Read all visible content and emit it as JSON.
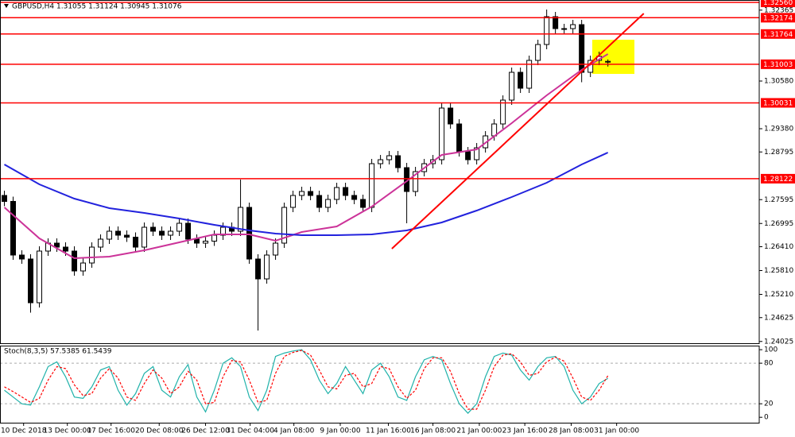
{
  "chart_data": [
    {
      "type": "candlestick",
      "title": "GBPUSD,H4  1.31055 1.31124 1.30945 1.31076",
      "xlim": [
        -0.5,
        86.3
      ],
      "ylim": [
        1.2398,
        1.3262
      ],
      "yticks": [
        1.32365,
        {
          "value": 1.3058,
          "label": "1.30580"
        },
        {
          "value": 1.2938,
          "label": "1.29380"
        },
        1.28795,
        1.27595,
        1.26995,
        {
          "value": 1.2641,
          "label": "1.26410"
        },
        {
          "value": 1.2581,
          "label": "1.25810"
        },
        {
          "value": 1.2521,
          "label": "1.25210"
        },
        1.24625,
        1.24025
      ],
      "open": [
        1.277,
        1.2755,
        1.262,
        1.261,
        1.25,
        1.263,
        1.265,
        1.264,
        1.263,
        1.258,
        1.26,
        1.264,
        1.266,
        1.268,
        1.267,
        1.2665,
        1.264,
        1.269,
        1.268,
        1.267,
        1.268,
        1.27,
        1.266,
        1.265,
        1.2655,
        1.267,
        1.269,
        1.268,
        1.274,
        1.261,
        1.256,
        1.262,
        1.265,
        1.274,
        1.277,
        1.278,
        1.277,
        1.274,
        1.276,
        1.279,
        1.277,
        1.276,
        1.274,
        1.285,
        1.286,
        1.287,
        1.284,
        1.278,
        1.283,
        1.285,
        1.286,
        1.299,
        1.295,
        1.288,
        1.286,
        1.289,
        1.292,
        1.295,
        1.301,
        1.308,
        1.304,
        1.311,
        1.315,
        1.322,
        1.319,
        1.319,
        1.32,
        1.308,
        1.311,
        1.31055
      ],
      "high": [
        1.2782,
        1.2767,
        1.2632,
        1.2622,
        1.2642,
        1.2662,
        1.2662,
        1.2652,
        1.2642,
        1.2612,
        1.2652,
        1.2672,
        1.2692,
        1.2692,
        1.2682,
        1.2677,
        1.2702,
        1.2702,
        1.2692,
        1.2692,
        1.2712,
        1.2712,
        1.2672,
        1.2667,
        1.2682,
        1.2702,
        1.2702,
        1.281,
        1.2752,
        1.2622,
        1.2632,
        1.2662,
        1.2752,
        1.2782,
        1.2792,
        1.2792,
        1.2782,
        1.2772,
        1.2802,
        1.2802,
        1.2782,
        1.2772,
        1.2862,
        1.2872,
        1.2882,
        1.2882,
        1.2852,
        1.2842,
        1.2862,
        1.2872,
        1.3002,
        1.3002,
        1.2962,
        1.2892,
        1.2902,
        1.2932,
        1.2962,
        1.3022,
        1.3092,
        1.3092,
        1.3122,
        1.3162,
        1.3238,
        1.3232,
        1.3202,
        1.3212,
        1.3212,
        1.3122,
        1.3132,
        1.31124
      ],
      "low": [
        1.2743,
        1.2608,
        1.2598,
        1.2475,
        1.2488,
        1.2618,
        1.2628,
        1.2618,
        1.2568,
        1.2568,
        1.2588,
        1.2628,
        1.2648,
        1.2658,
        1.2653,
        1.2628,
        1.2628,
        1.2668,
        1.2658,
        1.2658,
        1.2668,
        1.2648,
        1.2638,
        1.2638,
        1.2643,
        1.2658,
        1.2668,
        1.2668,
        1.2598,
        1.243,
        1.2548,
        1.2608,
        1.2638,
        1.2728,
        1.2758,
        1.2758,
        1.2728,
        1.2728,
        1.2748,
        1.2758,
        1.2748,
        1.2728,
        1.2728,
        1.2838,
        1.2848,
        1.2828,
        1.27,
        1.2768,
        1.2818,
        1.2838,
        1.2848,
        1.2938,
        1.2868,
        1.2848,
        1.2848,
        1.2878,
        1.2908,
        1.2938,
        1.2998,
        1.3028,
        1.3028,
        1.3098,
        1.3138,
        1.3178,
        1.3178,
        1.3178,
        1.3055,
        1.3068,
        1.3098,
        1.30945
      ],
      "close": [
        1.2755,
        1.262,
        1.261,
        1.25,
        1.263,
        1.265,
        1.264,
        1.263,
        1.258,
        1.26,
        1.264,
        1.266,
        1.268,
        1.267,
        1.2665,
        1.264,
        1.269,
        1.268,
        1.267,
        1.268,
        1.27,
        1.266,
        1.265,
        1.2655,
        1.267,
        1.269,
        1.268,
        1.274,
        1.261,
        1.256,
        1.262,
        1.265,
        1.274,
        1.277,
        1.278,
        1.277,
        1.274,
        1.276,
        1.279,
        1.277,
        1.276,
        1.274,
        1.285,
        1.286,
        1.287,
        1.284,
        1.278,
        1.283,
        1.285,
        1.286,
        1.299,
        1.295,
        1.288,
        1.286,
        1.289,
        1.292,
        1.295,
        1.301,
        1.308,
        1.304,
        1.311,
        1.315,
        1.322,
        1.319,
        1.319,
        1.32,
        1.308,
        1.311,
        1.312,
        1.31076
      ],
      "up_color": "#ffffff",
      "down_color": "#000000",
      "edge_color": "#000000",
      "lines": [
        {
          "color": "#cc3399",
          "x": [
            0,
            4,
            8,
            12,
            16,
            20,
            24,
            28,
            31,
            34,
            38,
            42,
            46,
            50,
            54,
            58,
            62,
            66,
            69
          ],
          "values": [
            1.274,
            1.2662,
            1.2612,
            1.2616,
            1.2632,
            1.2652,
            1.2672,
            1.2672,
            1.2656,
            1.2678,
            1.2692,
            1.2742,
            1.2806,
            1.2872,
            1.2886,
            1.2952,
            1.3022,
            1.3086,
            1.3126
          ]
        },
        {
          "color": "#2222dd",
          "x": [
            0,
            4,
            8,
            12,
            16,
            20,
            24,
            28,
            31,
            34,
            38,
            42,
            46,
            50,
            54,
            58,
            62,
            66,
            69
          ],
          "values": [
            1.2848,
            1.2798,
            1.2762,
            1.2738,
            1.2726,
            1.2712,
            1.2696,
            1.2682,
            1.2674,
            1.267,
            1.267,
            1.2672,
            1.2682,
            1.2702,
            1.2732,
            1.2766,
            1.2802,
            1.2848,
            1.2878
          ]
        },
        {
          "color": "#ff0000",
          "x": [
            44.3,
            73.1
          ],
          "values": [
            1.2636,
            1.3228
          ]
        }
      ],
      "levels": [
        {
          "value": 1.3256,
          "label": "1.32560"
        },
        1.32174,
        1.31764,
        1.31003,
        1.30031,
        1.28122
      ],
      "level_color": "#ff0000"
    },
    {
      "type": "line",
      "title": "Stoch(8,3,5) 57.5385 61.5439",
      "xlim": [
        -0.5,
        86.3
      ],
      "ylim": [
        -8,
        106
      ],
      "yticks": [
        100,
        80,
        20,
        0
      ],
      "levels": [
        20,
        80
      ],
      "series": [
        {
          "color": "#20b2aa",
          "values": [
            40,
            30,
            20,
            18,
            45,
            75,
            82,
            60,
            30,
            28,
            45,
            70,
            75,
            40,
            18,
            35,
            65,
            75,
            40,
            30,
            60,
            78,
            30,
            8,
            40,
            80,
            88,
            75,
            30,
            10,
            40,
            90,
            95,
            98,
            100,
            85,
            55,
            35,
            50,
            75,
            55,
            35,
            70,
            80,
            60,
            30,
            25,
            60,
            85,
            90,
            85,
            50,
            20,
            6,
            20,
            60,
            90,
            95,
            92,
            70,
            55,
            75,
            88,
            90,
            75,
            40,
            20,
            30,
            50,
            57.5385
          ]
        },
        {
          "color": "#ff0000",
          "dash": true,
          "values": [
            45,
            38,
            30,
            22,
            28,
            55,
            75,
            72,
            48,
            32,
            35,
            58,
            72,
            58,
            30,
            25,
            50,
            70,
            58,
            35,
            45,
            68,
            55,
            20,
            22,
            60,
            84,
            82,
            55,
            22,
            25,
            65,
            90,
            96,
            99,
            92,
            70,
            45,
            42,
            62,
            65,
            45,
            50,
            75,
            72,
            45,
            28,
            40,
            72,
            88,
            88,
            68,
            35,
            12,
            12,
            40,
            75,
            92,
            94,
            82,
            62,
            65,
            82,
            89,
            83,
            58,
            30,
            25,
            40,
            61.5439
          ]
        }
      ],
      "xticks": [
        {
          "value": 2.2,
          "label": "10 Dec 2018"
        },
        {
          "value": 7.2,
          "label": "13 Dec 00:00"
        },
        {
          "value": 12.2,
          "label": "17 Dec 16:00"
        },
        {
          "value": 17.7,
          "label": "20 Dec 08:00"
        },
        {
          "value": 23,
          "label": "26 Dec 12:00"
        },
        {
          "value": 28.1,
          "label": "31 Dec 04:00"
        },
        {
          "value": 33.1,
          "label": "4 Jan 08:00"
        },
        {
          "value": 38.4,
          "label": "9 Jan 00:00"
        },
        {
          "value": 43.9,
          "label": "11 Jan 16:00"
        },
        {
          "value": 49,
          "label": "16 Jan 08:00"
        },
        {
          "value": 54.3,
          "label": "21 Jan 00:00"
        },
        {
          "value": 59.5,
          "label": "23 Jan 16:00"
        },
        {
          "value": 64.8,
          "label": "28 Jan 08:00"
        },
        {
          "value": 70,
          "label": "31 Jan 00:00"
        }
      ]
    }
  ]
}
